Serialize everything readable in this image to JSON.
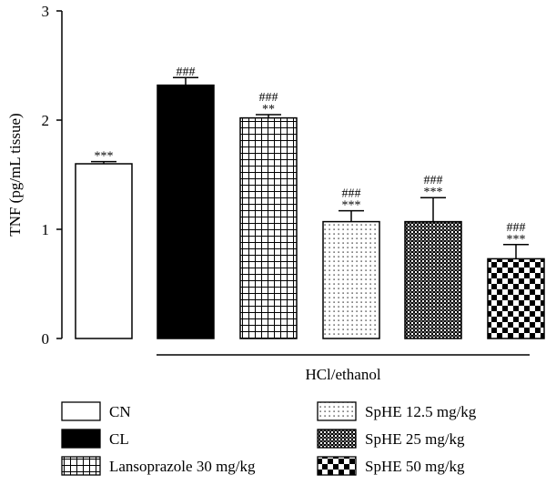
{
  "chart_data": {
    "type": "bar",
    "ylabel": "TNF (pg/mL tissue)",
    "ylim": [
      0,
      3
    ],
    "yticks": [
      "0",
      "1",
      "2",
      "3"
    ],
    "group_label": "HCl/ethanol",
    "categories": [
      "CN",
      "CL",
      "Lansoprazole 30 mg/kg",
      "SpHE 12.5 mg/kg",
      "SpHE 25 mg/kg",
      "SpHE 50 mg/kg"
    ],
    "values": [
      1.6,
      2.32,
      2.02,
      1.07,
      1.07,
      0.73
    ],
    "errors": [
      0.02,
      0.07,
      0.03,
      0.1,
      0.22,
      0.13
    ],
    "annotations": [
      [
        "***"
      ],
      [
        "###"
      ],
      [
        "###",
        "**"
      ],
      [
        "###",
        "***"
      ],
      [
        "###",
        "***"
      ],
      [
        "###",
        "***"
      ]
    ],
    "fills": [
      "white",
      "black",
      "grid",
      "dots",
      "crosshatch",
      "checker"
    ],
    "grid": false,
    "legend_position": "bottom"
  }
}
